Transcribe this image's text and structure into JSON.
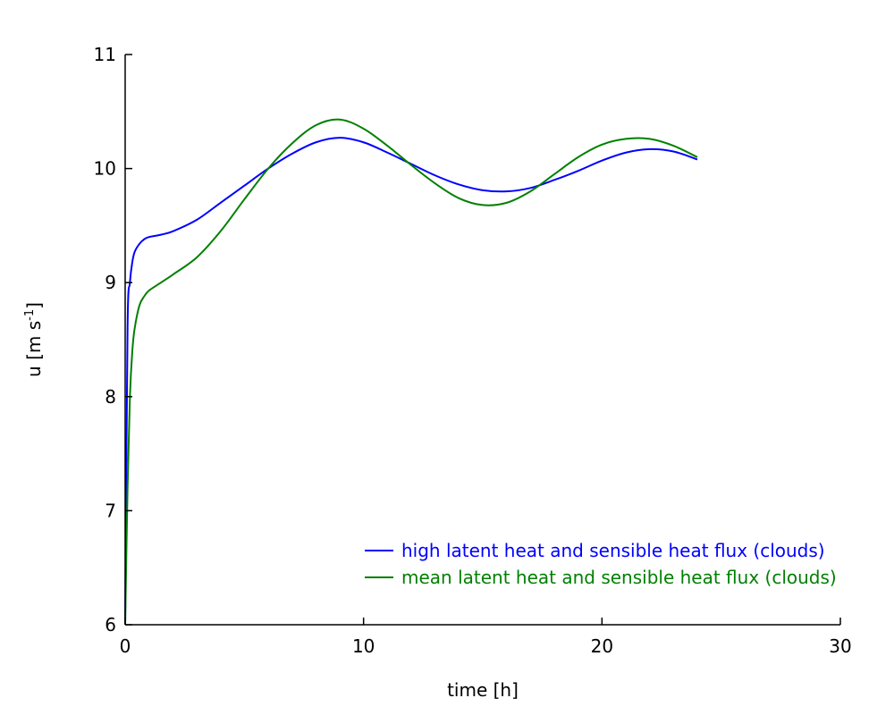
{
  "chart_data": {
    "type": "line",
    "title": "",
    "xlabel": "time [h]",
    "ylabel": {
      "main": "u [m s",
      "sup": "-1",
      "close": "]"
    },
    "xlim": [
      0,
      30
    ],
    "ylim": [
      6,
      11
    ],
    "xticks": [
      0,
      10,
      20,
      30
    ],
    "yticks": [
      6,
      7,
      8,
      9,
      10,
      11
    ],
    "grid": false,
    "legend_position": "bottom-right",
    "series": [
      {
        "name": "high latent heat and sensible heat flux (clouds)",
        "color": "#0000ff",
        "x": [
          0,
          0.1,
          0.2,
          0.3,
          0.4,
          0.6,
          0.8,
          1.0,
          1.5,
          2.0,
          3.0,
          4.0,
          5.0,
          6.0,
          7.0,
          8.0,
          9.0,
          10.0,
          11.0,
          12.0,
          13.0,
          14.0,
          15.0,
          16.0,
          17.0,
          18.0,
          19.0,
          20.0,
          21.0,
          22.0,
          23.0,
          24.0
        ],
        "y": [
          6.0,
          8.6,
          9.0,
          9.18,
          9.27,
          9.34,
          9.38,
          9.4,
          9.42,
          9.45,
          9.55,
          9.7,
          9.85,
          10.0,
          10.13,
          10.23,
          10.27,
          10.23,
          10.14,
          10.04,
          9.94,
          9.86,
          9.81,
          9.8,
          9.83,
          9.9,
          9.98,
          10.07,
          10.14,
          10.17,
          10.15,
          10.08
        ]
      },
      {
        "name": "mean latent heat and sensible heat flux (clouds)",
        "color": "#008000",
        "x": [
          0,
          0.1,
          0.2,
          0.3,
          0.4,
          0.6,
          0.8,
          1.0,
          1.5,
          2.0,
          3.0,
          4.0,
          5.0,
          6.0,
          7.0,
          8.0,
          9.0,
          10.0,
          11.0,
          12.0,
          13.0,
          14.0,
          15.0,
          16.0,
          17.0,
          18.0,
          19.0,
          20.0,
          21.0,
          22.0,
          23.0,
          24.0
        ],
        "y": [
          6.0,
          7.2,
          8.0,
          8.4,
          8.6,
          8.8,
          8.88,
          8.93,
          9.0,
          9.07,
          9.22,
          9.45,
          9.73,
          10.0,
          10.22,
          10.38,
          10.43,
          10.35,
          10.2,
          10.03,
          9.87,
          9.74,
          9.68,
          9.7,
          9.8,
          9.95,
          10.1,
          10.21,
          10.26,
          10.26,
          10.2,
          10.1
        ]
      }
    ]
  }
}
